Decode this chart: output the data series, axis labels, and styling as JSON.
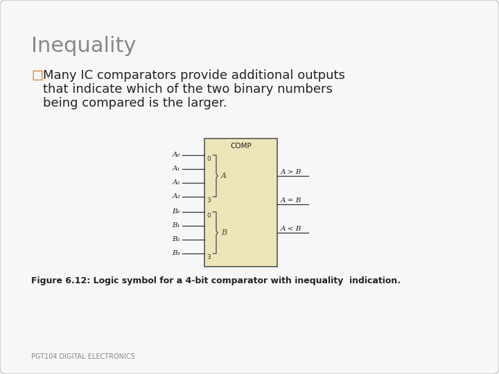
{
  "title": "Inequality",
  "title_color": "#888888",
  "title_fontsize": 22,
  "bullet_symbol": "□",
  "bullet_color": "#cc6600",
  "body_text_line1": "Many IC comparators provide additional outputs",
  "body_text_line2": "that indicate which of the two binary numbers",
  "body_text_line3": "being compared is the larger.",
  "body_fontsize": 13,
  "body_color": "#222222",
  "figure_caption": "Figure 6.12: Logic symbol for a 4-bit comparator with inequality  indication.",
  "caption_fontsize": 9,
  "caption_bold": true,
  "footer_text": "PGT104 DIGITAL ELECTRONICS",
  "footer_fontsize": 7,
  "footer_color": "#888888",
  "bg_color": "#ffffff",
  "slide_bg": "#f7f7f7",
  "comp_box_color": "#ede5b8",
  "comp_box_edge": "#555555",
  "input_labels_A": [
    "A₀",
    "A₁",
    "A₂",
    "A₃"
  ],
  "input_labels_B": [
    "B₀",
    "B₁",
    "B₂",
    "B₃"
  ],
  "output_labels": [
    "A > B",
    "A = B",
    "A < B"
  ],
  "comp_label": "COMP"
}
